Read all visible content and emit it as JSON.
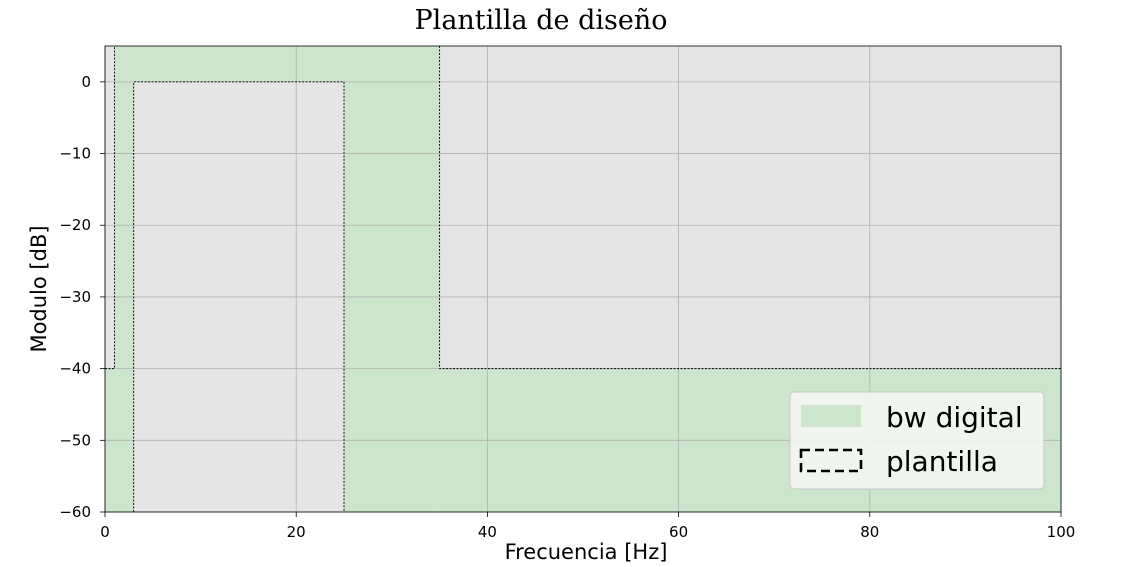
{
  "chart_data": {
    "type": "area",
    "title": "Plantilla de diseño",
    "xlabel": "Frecuencia [Hz]",
    "ylabel": "Modulo [dB]",
    "xlim": [
      0,
      100
    ],
    "ylim": [
      -60,
      5
    ],
    "xticks": [
      0,
      20,
      40,
      60,
      80,
      100
    ],
    "xtick_labels": [
      "0",
      "20",
      "40",
      "60",
      "80",
      "100"
    ],
    "yticks": [
      0,
      -10,
      -20,
      -30,
      -40,
      -50,
      -60
    ],
    "ytick_labels": [
      "0",
      "−10",
      "−20",
      "−30",
      "−40",
      "−50",
      "−60"
    ],
    "grid": true,
    "legend": {
      "placement": "lower-right"
    },
    "series": [
      {
        "name": "bw digital",
        "kind": "fill",
        "color": "#cce5cc",
        "regions": [
          {
            "x": [
              1,
              35
            ],
            "y": [
              -60,
              5
            ]
          },
          {
            "x": [
              0,
              1
            ],
            "y": [
              -60,
              -40
            ]
          },
          {
            "x": [
              35,
              100
            ],
            "y": [
              -60,
              -40
            ]
          }
        ]
      },
      {
        "name": "plantilla",
        "kind": "template",
        "color": "#000000",
        "fill_color": "#e5e5e5",
        "boxes": [
          {
            "x": [
              0,
              1
            ],
            "y": [
              -40,
              5
            ]
          },
          {
            "x": [
              3,
              25
            ],
            "y": [
              -60,
              0
            ]
          },
          {
            "x": [
              35,
              100
            ],
            "y": [
              -40,
              5
            ]
          }
        ]
      }
    ]
  }
}
